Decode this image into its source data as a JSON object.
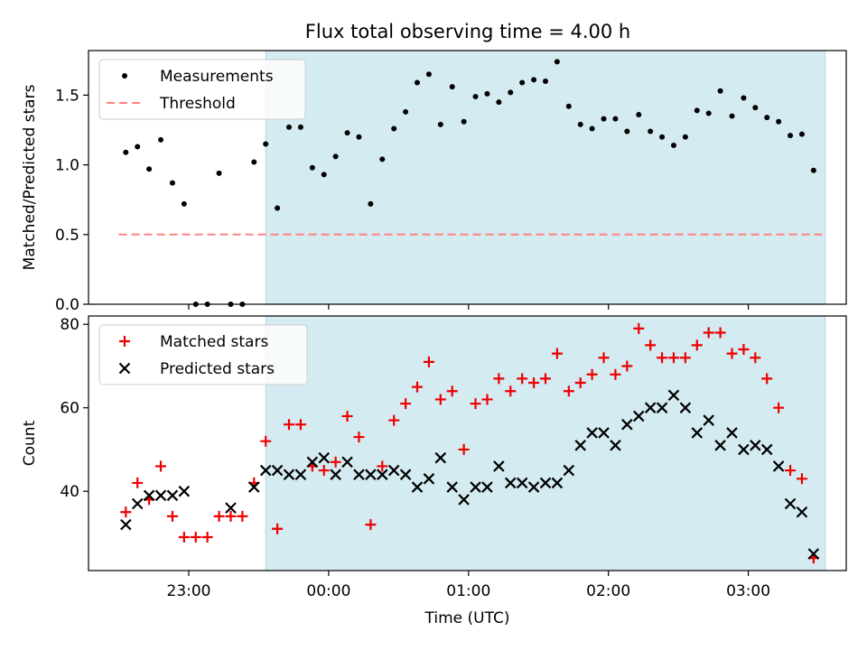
{
  "title": "Flux total observing time = 4.00 h",
  "colors": {
    "shade": "#d4ebf1",
    "shade_edge": "#b3d9e4",
    "threshold": "#ff8080",
    "matched": "#ee0000",
    "points": "#000000"
  },
  "chart_data": [
    {
      "type": "scatter",
      "ylabel": "Matched/Predicted stars",
      "ylim": [
        0,
        1.82
      ],
      "yticks": [
        0.0,
        0.5,
        1.0,
        1.5
      ],
      "ytick_labels": [
        "0.0",
        "0.5",
        "1.0",
        "1.5"
      ],
      "xlim": [
        "22:17",
        "03:42"
      ],
      "observing_window": [
        "23:33",
        "03:33"
      ],
      "legend": {
        "placement": "top-left",
        "entries": [
          "Measurements",
          "Threshold"
        ]
      },
      "threshold": {
        "name": "Threshold",
        "value": 0.5,
        "x_range": [
          "22:30",
          "03:33"
        ]
      },
      "series": [
        {
          "name": "Measurements",
          "points": [
            [
              "22:33",
              1.09
            ],
            [
              "22:38",
              1.13
            ],
            [
              "22:43",
              0.97
            ],
            [
              "22:48",
              1.18
            ],
            [
              "22:53",
              0.87
            ],
            [
              "22:58",
              0.72
            ],
            [
              "23:03",
              0.0
            ],
            [
              "23:08",
              0.0
            ],
            [
              "23:13",
              0.94
            ],
            [
              "23:18",
              0.0
            ],
            [
              "23:23",
              0.0
            ],
            [
              "23:28",
              1.02
            ],
            [
              "23:33",
              1.15
            ],
            [
              "23:38",
              0.69
            ],
            [
              "23:43",
              1.27
            ],
            [
              "23:48",
              1.27
            ],
            [
              "23:53",
              0.98
            ],
            [
              "23:58",
              0.93
            ],
            [
              "00:03",
              1.06
            ],
            [
              "00:08",
              1.23
            ],
            [
              "00:13",
              1.2
            ],
            [
              "00:18",
              0.72
            ],
            [
              "00:23",
              1.04
            ],
            [
              "00:28",
              1.26
            ],
            [
              "00:33",
              1.38
            ],
            [
              "00:38",
              1.59
            ],
            [
              "00:43",
              1.65
            ],
            [
              "00:48",
              1.29
            ],
            [
              "00:53",
              1.56
            ],
            [
              "00:58",
              1.31
            ],
            [
              "01:03",
              1.49
            ],
            [
              "01:08",
              1.51
            ],
            [
              "01:13",
              1.45
            ],
            [
              "01:18",
              1.52
            ],
            [
              "01:23",
              1.59
            ],
            [
              "01:28",
              1.61
            ],
            [
              "01:33",
              1.6
            ],
            [
              "01:38",
              1.74
            ],
            [
              "01:43",
              1.42
            ],
            [
              "01:48",
              1.29
            ],
            [
              "01:53",
              1.26
            ],
            [
              "01:58",
              1.33
            ],
            [
              "02:03",
              1.33
            ],
            [
              "02:08",
              1.24
            ],
            [
              "02:13",
              1.36
            ],
            [
              "02:18",
              1.24
            ],
            [
              "02:23",
              1.2
            ],
            [
              "02:28",
              1.14
            ],
            [
              "02:33",
              1.2
            ],
            [
              "02:38",
              1.39
            ],
            [
              "02:43",
              1.37
            ],
            [
              "02:48",
              1.53
            ],
            [
              "02:53",
              1.35
            ],
            [
              "02:58",
              1.48
            ],
            [
              "03:03",
              1.41
            ],
            [
              "03:08",
              1.34
            ],
            [
              "03:13",
              1.31
            ],
            [
              "03:18",
              1.21
            ],
            [
              "03:23",
              1.22
            ],
            [
              "03:28",
              0.96
            ]
          ]
        }
      ]
    },
    {
      "type": "scatter",
      "xlabel": "Time (UTC)",
      "ylabel": "Count",
      "ylim": [
        21,
        82
      ],
      "yticks": [
        40,
        60,
        80
      ],
      "ytick_labels": [
        "40",
        "60",
        "80"
      ],
      "xlim": [
        "22:17",
        "03:42"
      ],
      "xticks": [
        "23:00",
        "00:00",
        "01:00",
        "02:00",
        "03:00"
      ],
      "xtick_labels": [
        "23:00",
        "00:00",
        "01:00",
        "02:00",
        "03:00"
      ],
      "observing_window": [
        "23:33",
        "03:33"
      ],
      "legend": {
        "placement": "top-left",
        "entries": [
          "Matched stars",
          "Predicted stars"
        ]
      },
      "series": [
        {
          "name": "Matched stars",
          "marker": "plus",
          "points": [
            [
              "22:33",
              35
            ],
            [
              "22:38",
              42
            ],
            [
              "22:43",
              38
            ],
            [
              "22:48",
              46
            ],
            [
              "22:53",
              34
            ],
            [
              "22:58",
              29
            ],
            [
              "23:03",
              29
            ],
            [
              "23:08",
              29
            ],
            [
              "23:13",
              34
            ],
            [
              "23:18",
              34
            ],
            [
              "23:23",
              34
            ],
            [
              "23:28",
              42
            ],
            [
              "23:33",
              52
            ],
            [
              "23:38",
              31
            ],
            [
              "23:43",
              56
            ],
            [
              "23:48",
              56
            ],
            [
              "23:53",
              46
            ],
            [
              "23:58",
              45
            ],
            [
              "00:03",
              47
            ],
            [
              "00:08",
              58
            ],
            [
              "00:13",
              53
            ],
            [
              "00:18",
              32
            ],
            [
              "00:23",
              46
            ],
            [
              "00:28",
              57
            ],
            [
              "00:33",
              61
            ],
            [
              "00:38",
              65
            ],
            [
              "00:43",
              71
            ],
            [
              "00:48",
              62
            ],
            [
              "00:53",
              64
            ],
            [
              "00:58",
              50
            ],
            [
              "01:03",
              61
            ],
            [
              "01:08",
              62
            ],
            [
              "01:13",
              67
            ],
            [
              "01:18",
              64
            ],
            [
              "01:23",
              67
            ],
            [
              "01:28",
              66
            ],
            [
              "01:33",
              67
            ],
            [
              "01:38",
              73
            ],
            [
              "01:43",
              64
            ],
            [
              "01:48",
              66
            ],
            [
              "01:53",
              68
            ],
            [
              "01:58",
              72
            ],
            [
              "02:03",
              68
            ],
            [
              "02:08",
              70
            ],
            [
              "02:13",
              79
            ],
            [
              "02:18",
              75
            ],
            [
              "02:23",
              72
            ],
            [
              "02:28",
              72
            ],
            [
              "02:33",
              72
            ],
            [
              "02:38",
              75
            ],
            [
              "02:43",
              78
            ],
            [
              "02:48",
              78
            ],
            [
              "02:53",
              73
            ],
            [
              "02:58",
              74
            ],
            [
              "03:03",
              72
            ],
            [
              "03:08",
              67
            ],
            [
              "03:13",
              60
            ],
            [
              "03:18",
              45
            ],
            [
              "03:23",
              43
            ],
            [
              "03:28",
              24
            ]
          ]
        },
        {
          "name": "Predicted stars",
          "marker": "x",
          "points": [
            [
              "22:33",
              32
            ],
            [
              "22:38",
              37
            ],
            [
              "22:43",
              39
            ],
            [
              "22:48",
              39
            ],
            [
              "22:53",
              39
            ],
            [
              "22:58",
              40
            ],
            [
              "23:18",
              36
            ],
            [
              "23:28",
              41
            ],
            [
              "23:33",
              45
            ],
            [
              "23:38",
              45
            ],
            [
              "23:43",
              44
            ],
            [
              "23:48",
              44
            ],
            [
              "23:53",
              47
            ],
            [
              "23:58",
              48
            ],
            [
              "00:03",
              44
            ],
            [
              "00:08",
              47
            ],
            [
              "00:13",
              44
            ],
            [
              "00:18",
              44
            ],
            [
              "00:23",
              44
            ],
            [
              "00:28",
              45
            ],
            [
              "00:33",
              44
            ],
            [
              "00:38",
              41
            ],
            [
              "00:43",
              43
            ],
            [
              "00:48",
              48
            ],
            [
              "00:53",
              41
            ],
            [
              "00:58",
              38
            ],
            [
              "01:03",
              41
            ],
            [
              "01:08",
              41
            ],
            [
              "01:13",
              46
            ],
            [
              "01:18",
              42
            ],
            [
              "01:23",
              42
            ],
            [
              "01:28",
              41
            ],
            [
              "01:33",
              42
            ],
            [
              "01:38",
              42
            ],
            [
              "01:43",
              45
            ],
            [
              "01:48",
              51
            ],
            [
              "01:53",
              54
            ],
            [
              "01:58",
              54
            ],
            [
              "02:03",
              51
            ],
            [
              "02:08",
              56
            ],
            [
              "02:13",
              58
            ],
            [
              "02:18",
              60
            ],
            [
              "02:23",
              60
            ],
            [
              "02:28",
              63
            ],
            [
              "02:33",
              60
            ],
            [
              "02:38",
              54
            ],
            [
              "02:43",
              57
            ],
            [
              "02:48",
              51
            ],
            [
              "02:53",
              54
            ],
            [
              "02:58",
              50
            ],
            [
              "03:03",
              51
            ],
            [
              "03:08",
              50
            ],
            [
              "03:13",
              46
            ],
            [
              "03:18",
              37
            ],
            [
              "03:23",
              35
            ],
            [
              "03:28",
              25
            ]
          ]
        }
      ]
    }
  ]
}
